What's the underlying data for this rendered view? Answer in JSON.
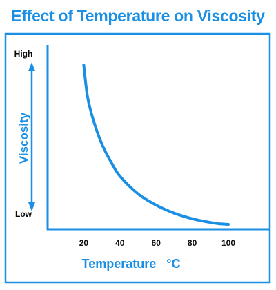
{
  "colors": {
    "accent": "#1a8fe3",
    "ink": "#0a0a0a"
  },
  "chart_data": {
    "type": "line",
    "title": "Effect of Temperature on Viscosity",
    "xlabel": "Temperature",
    "xunit": "°C",
    "ylabel": "Viscosity",
    "ytick_high": "High",
    "ytick_low": "Low",
    "xlim": [
      0,
      100
    ],
    "ylim": [
      0,
      1
    ],
    "x_ticks": [
      20,
      40,
      60,
      80,
      100
    ],
    "grid": false,
    "series": [
      {
        "x": [
          20,
          22,
          25,
          30,
          35,
          40,
          50,
          60,
          70,
          80,
          90,
          95,
          100
        ],
        "y": [
          0.99,
          0.8,
          0.66,
          0.5,
          0.39,
          0.3,
          0.19,
          0.12,
          0.07,
          0.035,
          0.012,
          0.004,
          0.0
        ]
      }
    ]
  }
}
